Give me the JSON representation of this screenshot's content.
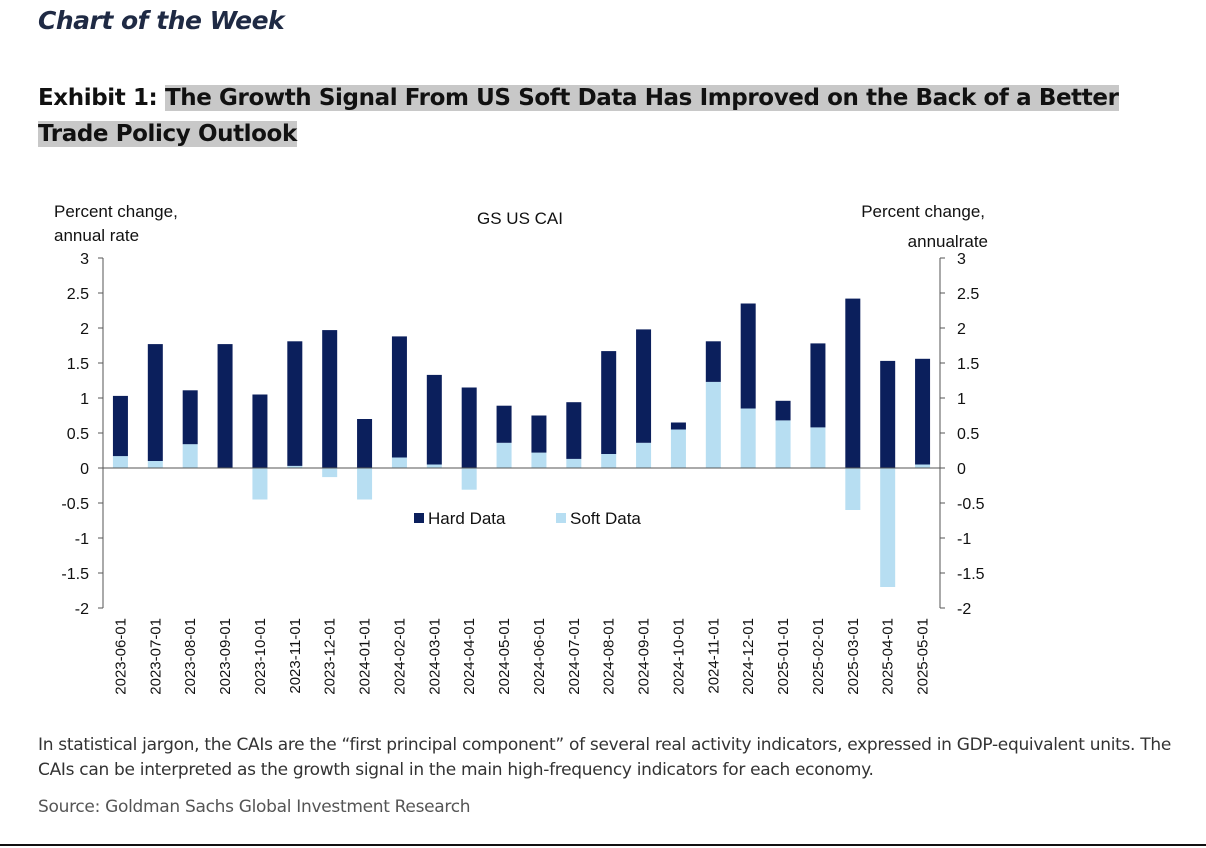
{
  "header": {
    "kicker": "Chart of the Week",
    "exhibit_label": "Exhibit 1:",
    "exhibit_title": "The Growth Signal From US Soft Data Has Improved on the Back of a Better Trade Policy Outlook"
  },
  "footnote": "In statistical jargon, the CAIs are the “first principal component” of several real activity indicators, expressed in GDP-equivalent units. The CAIs can be interpreted as the growth signal in the main high-frequency indicators for each economy.",
  "source": "Source: Goldman Sachs Global Investment Research",
  "colors": {
    "hard": "#0b1f5c",
    "soft": "#b7def2",
    "axis": "#555555"
  },
  "chart_data": {
    "type": "bar",
    "stacked": true,
    "title": "GS US CAI",
    "ylabel_left": [
      "Percent change,",
      "annual rate"
    ],
    "ylabel_right": [
      "Percent change,",
      "annualrate"
    ],
    "ylim": [
      -2,
      3
    ],
    "yticks": [
      "3",
      "2.5",
      "2",
      "1.5",
      "1",
      "0.5",
      "0",
      "-0.5",
      "-1",
      "-1.5",
      "-2"
    ],
    "legend_position": "center",
    "categories": [
      "2023-06-01",
      "2023-07-01",
      "2023-08-01",
      "2023-09-01",
      "2023-10-01",
      "2023-11-01",
      "2023-12-01",
      "2024-01-01",
      "2024-02-01",
      "2024-03-01",
      "2024-04-01",
      "2024-05-01",
      "2024-06-01",
      "2024-07-01",
      "2024-08-01",
      "2024-09-01",
      "2024-10-01",
      "2024-11-01",
      "2024-12-01",
      "2025-01-01",
      "2025-02-01",
      "2025-03-01",
      "2025-04-01",
      "2025-05-01"
    ],
    "series": [
      {
        "name": "Hard Data",
        "values": [
          0.86,
          1.67,
          0.77,
          1.77,
          1.05,
          1.78,
          1.97,
          0.7,
          1.73,
          1.28,
          1.15,
          0.53,
          0.53,
          0.81,
          1.47,
          1.62,
          0.1,
          0.58,
          1.5,
          0.28,
          1.2,
          2.42,
          1.53,
          1.51
        ]
      },
      {
        "name": "Soft Data",
        "values": [
          0.17,
          0.1,
          0.34,
          0.0,
          -0.45,
          0.03,
          -0.13,
          -0.45,
          0.15,
          0.05,
          -0.31,
          0.36,
          0.22,
          0.13,
          0.2,
          0.36,
          0.55,
          1.23,
          0.85,
          0.68,
          0.58,
          -0.6,
          -1.7,
          0.05
        ]
      }
    ]
  }
}
